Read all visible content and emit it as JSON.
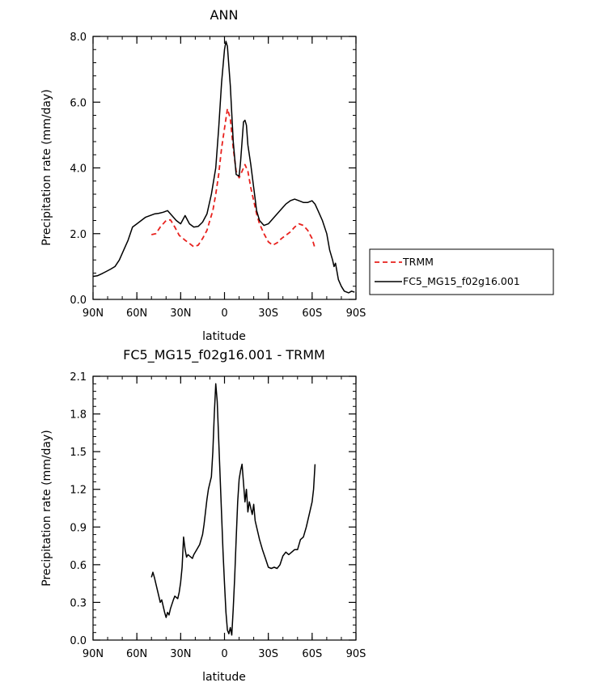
{
  "chart_data": [
    {
      "type": "line",
      "title": "ANN",
      "xlabel": "latitude",
      "ylabel": "Precipitation rate (mm/day)",
      "xlim": [
        90,
        -90
      ],
      "ylim": [
        0,
        8
      ],
      "x_ticks": [
        90,
        60,
        30,
        0,
        -30,
        -60,
        -90
      ],
      "x_tick_labels": [
        "90N",
        "60N",
        "30N",
        "0",
        "30S",
        "60S",
        "90S"
      ],
      "y_ticks": [
        0,
        2,
        4,
        6,
        8
      ],
      "y_tick_labels": [
        "0.0",
        "2.0",
        "4.0",
        "6.0",
        "8.0"
      ],
      "legend": {
        "position": "outside-right"
      },
      "series": [
        {
          "name": "TRMM",
          "color": "#e8211d",
          "style": "dashed",
          "points": [
            [
              50,
              1.97
            ],
            [
              47,
              2.0
            ],
            [
              44,
              2.2
            ],
            [
              40,
              2.4
            ],
            [
              37,
              2.42
            ],
            [
              34,
              2.2
            ],
            [
              31,
              1.95
            ],
            [
              27,
              1.8
            ],
            [
              24,
              1.7
            ],
            [
              21,
              1.6
            ],
            [
              18,
              1.65
            ],
            [
              15,
              1.85
            ],
            [
              12,
              2.1
            ],
            [
              10,
              2.4
            ],
            [
              8,
              2.7
            ],
            [
              6,
              3.2
            ],
            [
              4,
              3.8
            ],
            [
              2,
              4.6
            ],
            [
              0,
              5.2
            ],
            [
              -2,
              5.8
            ],
            [
              -4,
              5.5
            ],
            [
              -6,
              4.6
            ],
            [
              -8,
              3.9
            ],
            [
              -10,
              3.7
            ],
            [
              -12,
              3.9
            ],
            [
              -14,
              4.1
            ],
            [
              -16,
              3.9
            ],
            [
              -18,
              3.4
            ],
            [
              -20,
              3.0
            ],
            [
              -22,
              2.6
            ],
            [
              -24,
              2.3
            ],
            [
              -27,
              2.0
            ],
            [
              -30,
              1.75
            ],
            [
              -33,
              1.65
            ],
            [
              -36,
              1.72
            ],
            [
              -39,
              1.85
            ],
            [
              -42,
              1.95
            ],
            [
              -45,
              2.05
            ],
            [
              -48,
              2.2
            ],
            [
              -51,
              2.3
            ],
            [
              -54,
              2.25
            ],
            [
              -57,
              2.1
            ],
            [
              -60,
              1.85
            ],
            [
              -62,
              1.55
            ]
          ]
        },
        {
          "name": "FC5_MG15_f02g16.001",
          "color": "#000000",
          "style": "solid",
          "points": [
            [
              90,
              0.7
            ],
            [
              87,
              0.72
            ],
            [
              84,
              0.78
            ],
            [
              81,
              0.85
            ],
            [
              78,
              0.92
            ],
            [
              75,
              1.0
            ],
            [
              72,
              1.2
            ],
            [
              69,
              1.5
            ],
            [
              66,
              1.8
            ],
            [
              63,
              2.2
            ],
            [
              60,
              2.3
            ],
            [
              57,
              2.4
            ],
            [
              54,
              2.5
            ],
            [
              51,
              2.55
            ],
            [
              48,
              2.6
            ],
            [
              45,
              2.62
            ],
            [
              42,
              2.65
            ],
            [
              39,
              2.7
            ],
            [
              36,
              2.55
            ],
            [
              33,
              2.4
            ],
            [
              30,
              2.3
            ],
            [
              27,
              2.55
            ],
            [
              24,
              2.3
            ],
            [
              21,
              2.2
            ],
            [
              18,
              2.22
            ],
            [
              15,
              2.35
            ],
            [
              12,
              2.6
            ],
            [
              9,
              3.2
            ],
            [
              6,
              4.0
            ],
            [
              4,
              5.2
            ],
            [
              2,
              6.6
            ],
            [
              0,
              7.6
            ],
            [
              -1,
              7.85
            ],
            [
              -2,
              7.7
            ],
            [
              -4,
              6.5
            ],
            [
              -6,
              4.8
            ],
            [
              -8,
              3.8
            ],
            [
              -10,
              3.75
            ],
            [
              -11,
              4.2
            ],
            [
              -12,
              4.8
            ],
            [
              -13,
              5.4
            ],
            [
              -14,
              5.45
            ],
            [
              -15,
              5.3
            ],
            [
              -16,
              4.7
            ],
            [
              -18,
              4.1
            ],
            [
              -20,
              3.4
            ],
            [
              -22,
              2.7
            ],
            [
              -24,
              2.4
            ],
            [
              -27,
              2.25
            ],
            [
              -30,
              2.3
            ],
            [
              -33,
              2.45
            ],
            [
              -36,
              2.6
            ],
            [
              -39,
              2.75
            ],
            [
              -42,
              2.9
            ],
            [
              -45,
              3.0
            ],
            [
              -48,
              3.05
            ],
            [
              -51,
              3.0
            ],
            [
              -54,
              2.95
            ],
            [
              -57,
              2.95
            ],
            [
              -60,
              3.0
            ],
            [
              -62,
              2.9
            ],
            [
              -64,
              2.7
            ],
            [
              -67,
              2.4
            ],
            [
              -70,
              2.0
            ],
            [
              -72,
              1.5
            ],
            [
              -74,
              1.2
            ],
            [
              -75,
              1.0
            ],
            [
              -76,
              1.1
            ],
            [
              -78,
              0.6
            ],
            [
              -80,
              0.4
            ],
            [
              -82,
              0.25
            ],
            [
              -85,
              0.2
            ],
            [
              -87,
              0.25
            ],
            [
              -89,
              0.22
            ]
          ]
        }
      ]
    },
    {
      "type": "line",
      "title": "FC5_MG15_f02g16.001 - TRMM",
      "xlabel": "latitude",
      "ylabel": "Precipitation rate (mm/day)",
      "xlim": [
        90,
        -90
      ],
      "ylim": [
        0,
        2.1
      ],
      "x_ticks": [
        90,
        60,
        30,
        0,
        -30,
        -60,
        -90
      ],
      "x_tick_labels": [
        "90N",
        "60N",
        "30N",
        "0",
        "30S",
        "60S",
        "90S"
      ],
      "y_ticks": [
        0,
        0.3,
        0.6,
        0.9,
        1.2,
        1.5,
        1.8,
        2.1
      ],
      "y_tick_labels": [
        "0.0",
        "0.3",
        "0.6",
        "0.9",
        "1.2",
        "1.5",
        "1.8",
        "2.1"
      ],
      "series": [
        {
          "name": "FC5_MG15_f02g16.001 - TRMM",
          "color": "#000000",
          "style": "solid",
          "points": [
            [
              50,
              0.5
            ],
            [
              49,
              0.54
            ],
            [
              48,
              0.5
            ],
            [
              47,
              0.45
            ],
            [
              45,
              0.35
            ],
            [
              44,
              0.3
            ],
            [
              43,
              0.32
            ],
            [
              41,
              0.22
            ],
            [
              40,
              0.18
            ],
            [
              39,
              0.22
            ],
            [
              38,
              0.2
            ],
            [
              37,
              0.25
            ],
            [
              35,
              0.32
            ],
            [
              34,
              0.35
            ],
            [
              32,
              0.33
            ],
            [
              31,
              0.38
            ],
            [
              30,
              0.46
            ],
            [
              29,
              0.58
            ],
            [
              28,
              0.82
            ],
            [
              27,
              0.72
            ],
            [
              26,
              0.66
            ],
            [
              25,
              0.68
            ],
            [
              24,
              0.67
            ],
            [
              22,
              0.65
            ],
            [
              21,
              0.68
            ],
            [
              19,
              0.72
            ],
            [
              17,
              0.76
            ],
            [
              15,
              0.84
            ],
            [
              14,
              0.92
            ],
            [
              13,
              1.02
            ],
            [
              12,
              1.12
            ],
            [
              11,
              1.2
            ],
            [
              10,
              1.25
            ],
            [
              9,
              1.3
            ],
            [
              8,
              1.5
            ],
            [
              7,
              1.8
            ],
            [
              6,
              2.04
            ],
            [
              5,
              1.9
            ],
            [
              4,
              1.6
            ],
            [
              3,
              1.3
            ],
            [
              2,
              1.0
            ],
            [
              1,
              0.7
            ],
            [
              0,
              0.45
            ],
            [
              -1,
              0.22
            ],
            [
              -2,
              0.08
            ],
            [
              -3,
              0.05
            ],
            [
              -4,
              0.1
            ],
            [
              -5,
              0.04
            ],
            [
              -6,
              0.25
            ],
            [
              -7,
              0.5
            ],
            [
              -8,
              0.8
            ],
            [
              -9,
              1.1
            ],
            [
              -10,
              1.28
            ],
            [
              -11,
              1.35
            ],
            [
              -12,
              1.4
            ],
            [
              -13,
              1.25
            ],
            [
              -14,
              1.1
            ],
            [
              -15,
              1.2
            ],
            [
              -16,
              1.02
            ],
            [
              -17,
              1.1
            ],
            [
              -18,
              1.05
            ],
            [
              -19,
              1.0
            ],
            [
              -20,
              1.08
            ],
            [
              -21,
              0.95
            ],
            [
              -22,
              0.9
            ],
            [
              -23,
              0.85
            ],
            [
              -24,
              0.8
            ],
            [
              -26,
              0.72
            ],
            [
              -28,
              0.65
            ],
            [
              -30,
              0.58
            ],
            [
              -32,
              0.57
            ],
            [
              -34,
              0.58
            ],
            [
              -36,
              0.57
            ],
            [
              -38,
              0.6
            ],
            [
              -40,
              0.67
            ],
            [
              -42,
              0.7
            ],
            [
              -44,
              0.68
            ],
            [
              -46,
              0.7
            ],
            [
              -48,
              0.72
            ],
            [
              -50,
              0.72
            ],
            [
              -52,
              0.8
            ],
            [
              -54,
              0.82
            ],
            [
              -56,
              0.9
            ],
            [
              -58,
              1.0
            ],
            [
              -60,
              1.1
            ],
            [
              -61,
              1.2
            ],
            [
              -62,
              1.4
            ]
          ]
        }
      ]
    }
  ]
}
